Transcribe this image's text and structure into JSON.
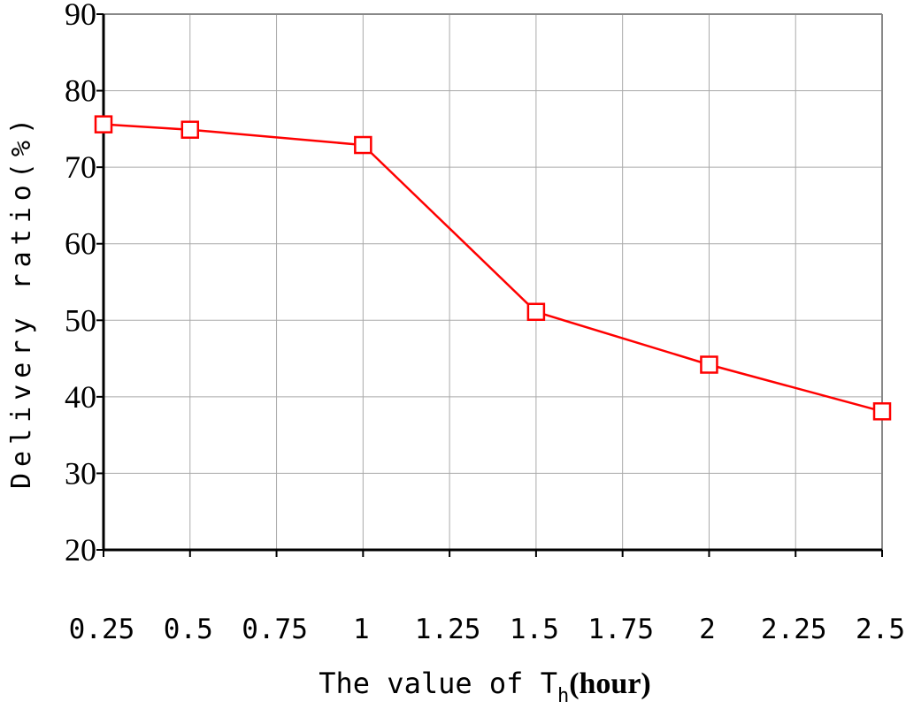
{
  "chart_data": {
    "type": "line",
    "xlabel": {
      "prefix": "The value of T",
      "subscript": "h",
      "suffix": "(hour)"
    },
    "ylabel": "Delivery ratio(%)",
    "xlim": [
      0.25,
      2.5
    ],
    "ylim": [
      20,
      90
    ],
    "x_ticks": [
      "0.25",
      "0.5",
      "0.75",
      "1",
      "1.25",
      "1.5",
      "1.75",
      "2",
      "2.25",
      "2.5"
    ],
    "y_ticks": [
      "20",
      "30",
      "40",
      "50",
      "60",
      "70",
      "80",
      "90"
    ],
    "grid": true,
    "series": [
      {
        "x": [
          0.25,
          0.5,
          1.0,
          1.5,
          2.0,
          2.5
        ],
        "y": [
          75.6,
          74.9,
          72.9,
          51.1,
          44.2,
          38.1
        ]
      }
    ],
    "colors": {
      "line": "#ff0000",
      "marker_fill": "#ffffff",
      "grid": "#aaaaaa",
      "axis": "#000000"
    }
  }
}
